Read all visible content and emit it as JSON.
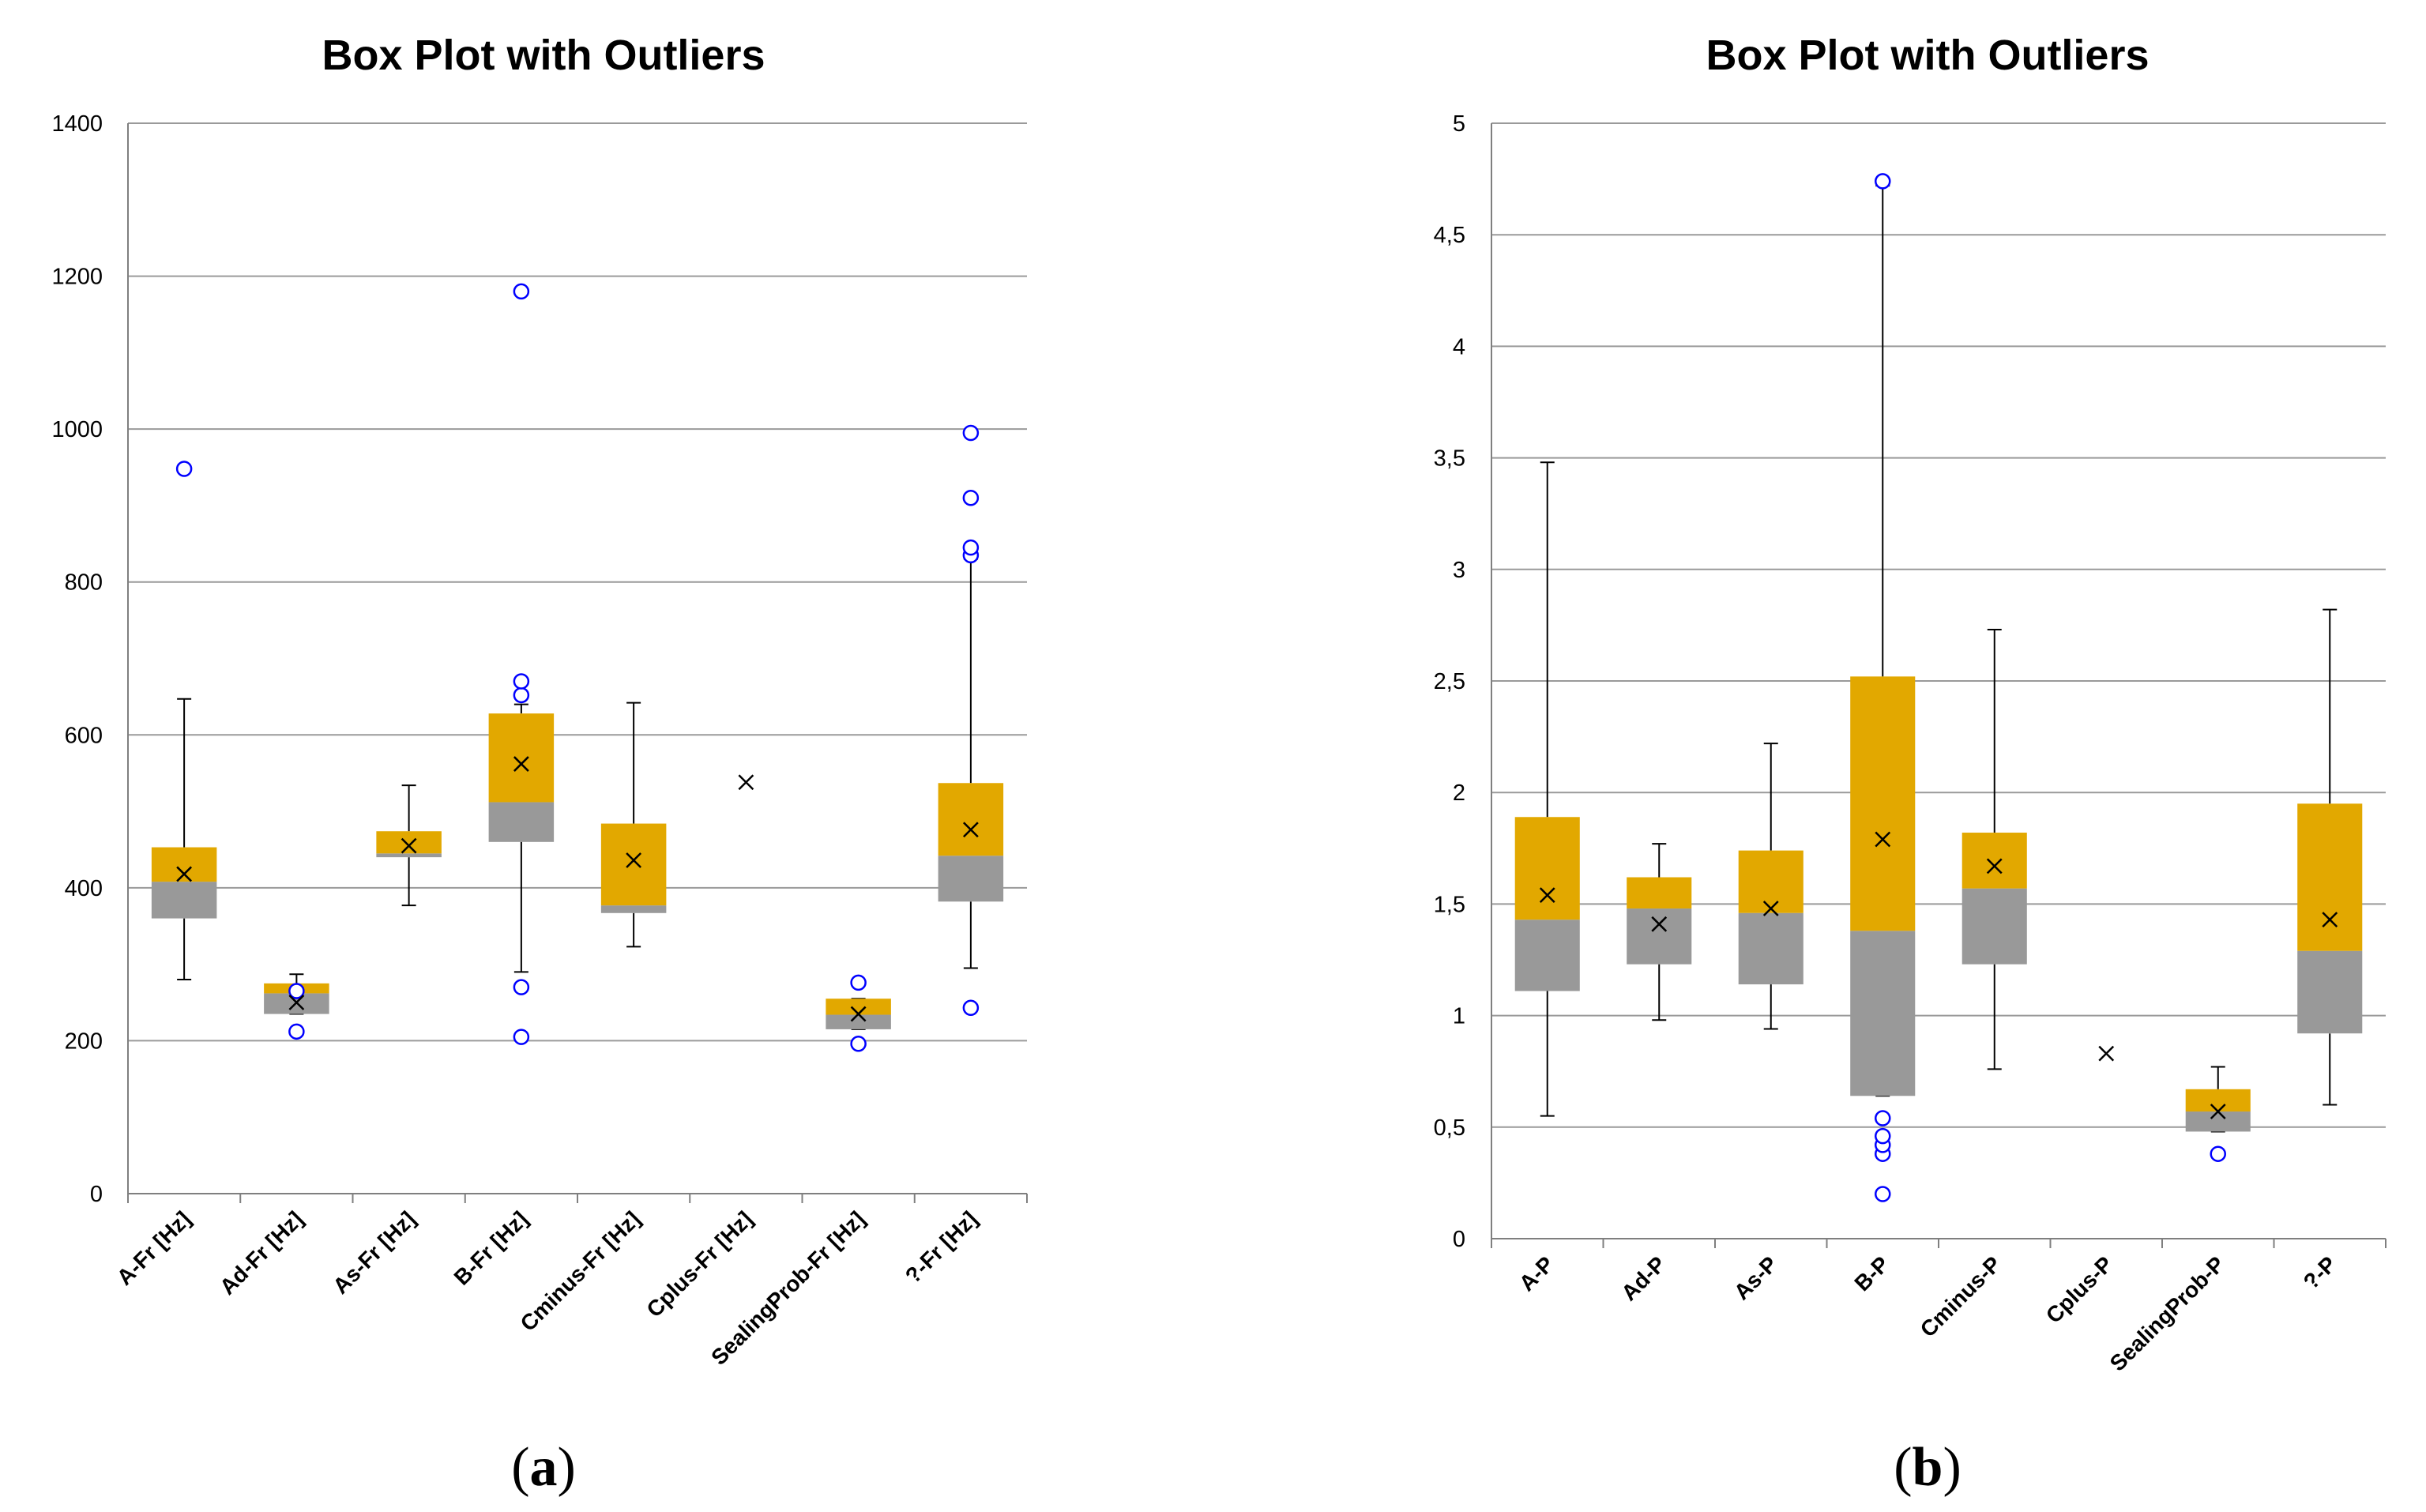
{
  "colors": {
    "upper_box": "#E2A800",
    "lower_box": "#999999",
    "outlier": "#0000FF",
    "grid": "#9a9a9a",
    "axis": "#7f7f7f",
    "whisker": "#000000"
  },
  "chart_data": [
    {
      "type": "box",
      "panel": "a",
      "panel_label": "a",
      "title": "Box Plot with Outliers",
      "xlabel": "",
      "ylabel": "",
      "ylim": [
        0,
        1400
      ],
      "yticks": [
        0,
        200,
        400,
        600,
        800,
        1000,
        1200,
        1400
      ],
      "ytick_labels": [
        "0",
        "200",
        "400",
        "600",
        "800",
        "1000",
        "1200",
        "1400"
      ],
      "categories": [
        "A-Fr [Hz]",
        "Ad-Fr [Hz]",
        "As-Fr [Hz]",
        "B-Fr [Hz]",
        "Cminus-Fr [Hz]",
        "Cplus-Fr [Hz]",
        "SealingProb-Fr [Hz]",
        "?-Fr [Hz]"
      ],
      "boxes": [
        {
          "whisker_low": 280,
          "q1": 360,
          "median": 408,
          "q3": 453,
          "whisker_high": 647,
          "mean": 418,
          "outliers": [
            948
          ]
        },
        {
          "whisker_low": 235,
          "q1": 235,
          "median": 262,
          "q3": 275,
          "whisker_high": 287,
          "mean": 250,
          "outliers": [
            212,
            265
          ]
        },
        {
          "whisker_low": 377,
          "q1": 440,
          "median": 445,
          "q3": 474,
          "whisker_high": 534,
          "mean": 455,
          "outliers": []
        },
        {
          "whisker_low": 290,
          "q1": 460,
          "median": 512,
          "q3": 628,
          "whisker_high": 640,
          "mean": 562,
          "outliers": [
            205,
            270,
            652,
            670,
            1180
          ]
        },
        {
          "whisker_low": 323,
          "q1": 367,
          "median": 377,
          "q3": 484,
          "whisker_high": 642,
          "mean": 436,
          "outliers": []
        },
        {
          "whisker_low": null,
          "q1": null,
          "median": null,
          "q3": null,
          "whisker_high": null,
          "mean": 538,
          "outliers": []
        },
        {
          "whisker_low": 215,
          "q1": 215,
          "median": 234,
          "q3": 255,
          "whisker_high": 255,
          "mean": 235,
          "outliers": [
            196,
            276
          ]
        },
        {
          "whisker_low": 295,
          "q1": 382,
          "median": 442,
          "q3": 537,
          "whisker_high": 830,
          "mean": 476,
          "outliers": [
            243,
            835,
            845,
            910,
            995
          ]
        }
      ]
    },
    {
      "type": "box",
      "panel": "b",
      "panel_label": "b",
      "title": "Box Plot with Outliers",
      "xlabel": "",
      "ylabel": "",
      "ylim": [
        0,
        5
      ],
      "yticks": [
        0,
        0.5,
        1,
        1.5,
        2,
        2.5,
        3,
        3.5,
        4,
        4.5,
        5
      ],
      "ytick_labels": [
        "0",
        "0,5",
        "1",
        "1,5",
        "2",
        "2,5",
        "3",
        "3,5",
        "4",
        "4,5",
        "5"
      ],
      "categories": [
        "A-P",
        "Ad-P",
        "As-P",
        "B-P",
        "Cminus-P",
        "Cplus-P",
        "SealingProb-P",
        "?-P"
      ],
      "boxes": [
        {
          "whisker_low": 0.55,
          "q1": 1.11,
          "median": 1.43,
          "q3": 1.89,
          "whisker_high": 3.48,
          "mean": 1.54,
          "outliers": []
        },
        {
          "whisker_low": 0.98,
          "q1": 1.23,
          "median": 1.48,
          "q3": 1.62,
          "whisker_high": 1.77,
          "mean": 1.41,
          "outliers": []
        },
        {
          "whisker_low": 0.94,
          "q1": 1.14,
          "median": 1.46,
          "q3": 1.74,
          "whisker_high": 2.22,
          "mean": 1.48,
          "outliers": []
        },
        {
          "whisker_low": 0.64,
          "q1": 0.64,
          "median": 1.38,
          "q3": 2.52,
          "whisker_high": 4.72,
          "mean": 1.79,
          "outliers": [
            0.2,
            0.38,
            0.42,
            0.46,
            0.54,
            4.74
          ]
        },
        {
          "whisker_low": 0.76,
          "q1": 1.23,
          "median": 1.57,
          "q3": 1.82,
          "whisker_high": 2.73,
          "mean": 1.67,
          "outliers": []
        },
        {
          "whisker_low": null,
          "q1": null,
          "median": null,
          "q3": null,
          "whisker_high": null,
          "mean": 0.83,
          "outliers": []
        },
        {
          "whisker_low": 0.48,
          "q1": 0.48,
          "median": 0.57,
          "q3": 0.67,
          "whisker_high": 0.77,
          "mean": 0.57,
          "outliers": [
            0.38
          ]
        },
        {
          "whisker_low": 0.6,
          "q1": 0.92,
          "median": 1.29,
          "q3": 1.95,
          "whisker_high": 2.82,
          "mean": 1.43,
          "outliers": []
        }
      ]
    }
  ]
}
